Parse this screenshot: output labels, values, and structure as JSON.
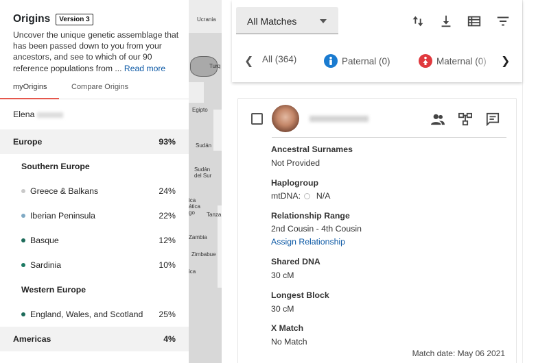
{
  "origins": {
    "title": "Origins",
    "version": "Version 3",
    "description": "Uncover the unique genetic assemblage that has been passed down to you from your ancestors, and see to which of our 90 reference populations from ...",
    "read_more": "Read more",
    "tabs": [
      "myOrigins",
      "Compare Origins"
    ],
    "user_first_name": "Elena",
    "rows": [
      {
        "type": "region",
        "label": "Europe",
        "pct": "93%"
      },
      {
        "type": "sub",
        "label": "Southern Europe",
        "pct": ""
      },
      {
        "type": "item",
        "label": "Greece & Balkans",
        "pct": "24%",
        "color": "#c9c9c9"
      },
      {
        "type": "item",
        "label": "Iberian Peninsula",
        "pct": "22%",
        "color": "#7fa9c4"
      },
      {
        "type": "item",
        "label": "Basque",
        "pct": "12%",
        "color": "#1d6b5a"
      },
      {
        "type": "item",
        "label": "Sardinia",
        "pct": "10%",
        "color": "#1d7a63"
      },
      {
        "type": "sub",
        "label": "Western Europe",
        "pct": ""
      },
      {
        "type": "item",
        "label": "England, Wales, and Scotland",
        "pct": "25%",
        "color": "#1d6b5a"
      },
      {
        "type": "region",
        "label": "Americas",
        "pct": "4%"
      }
    ]
  },
  "map_labels": [
    "Ucrania",
    "Turq",
    "Egipto",
    "Sudán",
    "Sudán del Sur",
    "ica ática go",
    "Tanza",
    "Zambia",
    "Zimbabue",
    "ica"
  ],
  "matches": {
    "filter_dropdown": "All Matches",
    "filter_tabs": [
      {
        "label": "All (364)"
      },
      {
        "label": "Paternal (0)",
        "icon": "male-icon",
        "color": "#1a7bd0"
      },
      {
        "label": "Maternal (0)",
        "icon": "female-icon",
        "color": "#e0393e"
      }
    ],
    "card": {
      "fields": [
        {
          "label": "Ancestral Surnames",
          "value": "Not Provided"
        },
        {
          "label": "Haplogroup",
          "value_prefix": "mtDNA:",
          "value": "N/A"
        },
        {
          "label": "Relationship Range",
          "value": "2nd Cousin - 4th Cousin",
          "link": "Assign Relationship"
        },
        {
          "label": "Shared DNA",
          "value": "30 cM"
        },
        {
          "label": "Longest Block",
          "value": "30 cM"
        },
        {
          "label": "X Match",
          "value": "No Match"
        }
      ],
      "match_date": "Match date: May 06 2021"
    }
  },
  "colors": {
    "accent_red": "#e5574c",
    "link_blue": "#0b58a5",
    "region_bg": "#f2f2f2"
  }
}
